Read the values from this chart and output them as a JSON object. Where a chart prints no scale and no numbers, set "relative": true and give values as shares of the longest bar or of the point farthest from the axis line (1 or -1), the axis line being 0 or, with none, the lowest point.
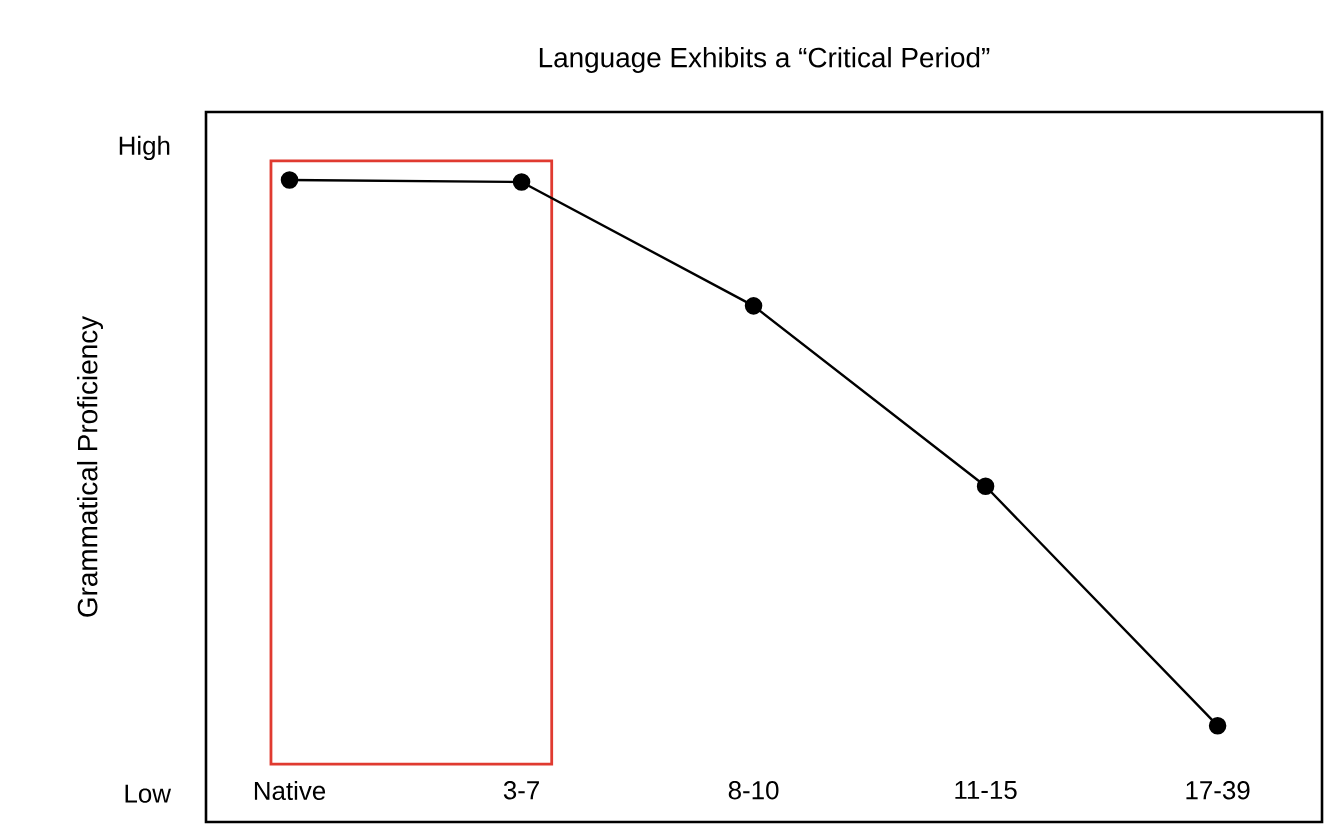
{
  "chart_data": {
    "type": "line",
    "title": "Language Exhibits a “Critical Period”",
    "ylabel": "Grammatical Proficiency",
    "categories": [
      "Native",
      "3-7",
      "8-10",
      "11-15",
      "17-39"
    ],
    "relative": true,
    "series": [
      {
        "color": "#000000",
        "values": [
          1,
          0.997,
          0.804,
          0.523,
          0.15
        ]
      }
    ],
    "marker": "circle",
    "line_style": "solid",
    "annotations": [
      "High",
      "Low"
    ]
  }
}
